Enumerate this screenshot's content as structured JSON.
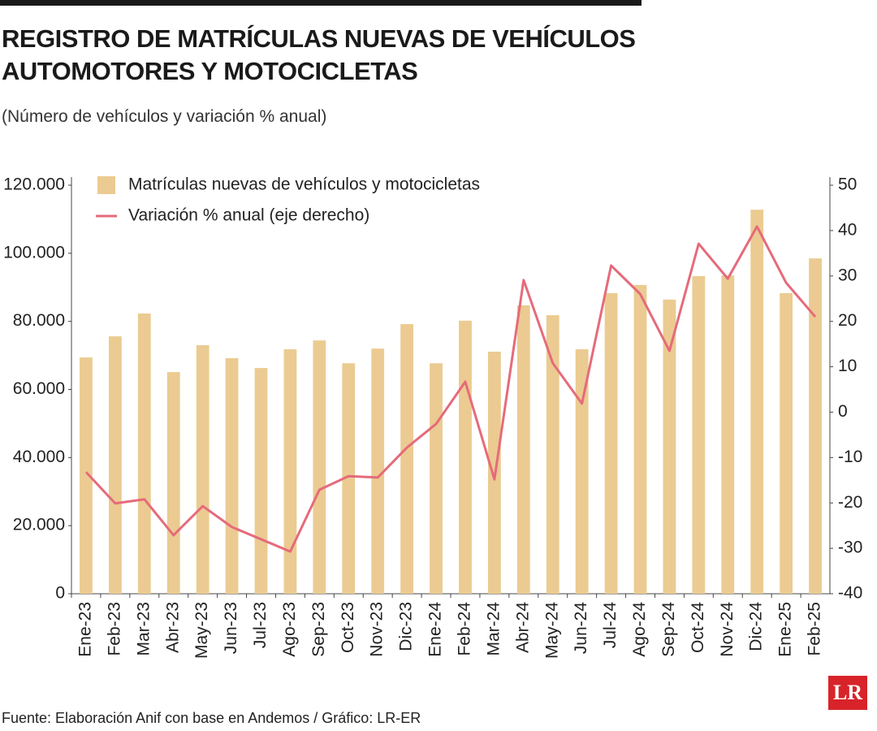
{
  "chart_data": {
    "type": "bar",
    "title": "REGISTRO DE MATRÍCULAS NUEVAS DE VEHÍCULOS AUTOMOTORES Y MOTOCICLETAS",
    "subtitle": "(Número de vehículos y variación % anual)",
    "source": "Fuente: Elaboración Anif con base en Andemos / Gráfico: LR-ER",
    "logo": "LR",
    "legend": "upper left",
    "categories": [
      "Ene-23",
      "Feb-23",
      "Mar-23",
      "Abr-23",
      "May-23",
      "Jun-23",
      "Jul-23",
      "Ago-23",
      "Sep-23",
      "Oct-23",
      "Nov-23",
      "Dic-23",
      "Ene-24",
      "Feb-24",
      "Mar-24",
      "Abr-24",
      "May-24",
      "Jun-24",
      "Jul-24",
      "Ago-24",
      "Sep-24",
      "Oct-24",
      "Nov-24",
      "Dic-24",
      "Ene-25",
      "Feb-25"
    ],
    "series": [
      {
        "name": "Matrículas nuevas de vehículos y motocicletas",
        "type": "bar",
        "color": "#ebcb91",
        "values": [
          69400,
          75600,
          82300,
          65100,
          73000,
          69200,
          66300,
          71800,
          74400,
          67700,
          72000,
          79200,
          67700,
          80200,
          71100,
          84700,
          81800,
          71800,
          88300,
          90700,
          86400,
          93300,
          93500,
          112800,
          88300,
          98500
        ]
      },
      {
        "name": "Variación % anual (eje derecho)",
        "type": "line",
        "axis": "y2",
        "color": "#e56b7b",
        "values": [
          -13.2,
          -20.1,
          -19.2,
          -27.1,
          -20.7,
          -25.3,
          -28.0,
          -30.7,
          -17.1,
          -14.1,
          -14.4,
          -7.8,
          -2.6,
          6.7,
          -14.8,
          29.1,
          10.8,
          1.9,
          32.3,
          26.0,
          13.5,
          37.1,
          29.4,
          40.9,
          28.5,
          21.0
        ]
      }
    ],
    "ylim": [
      0,
      120000
    ],
    "yticks": [
      0,
      {
        "value": 20000,
        "label": "20.000"
      },
      {
        "value": 40000,
        "label": "40.000"
      },
      {
        "value": 60000,
        "label": "60.000"
      },
      {
        "value": 80000,
        "label": "80.000"
      },
      {
        "value": 100000,
        "label": "100.000"
      },
      {
        "value": 120000,
        "label": "120.000"
      }
    ],
    "y2lim": [
      -40,
      50
    ],
    "y2ticks": [
      -40,
      -30,
      -20,
      -10,
      0,
      10,
      20,
      30,
      40,
      50
    ]
  }
}
